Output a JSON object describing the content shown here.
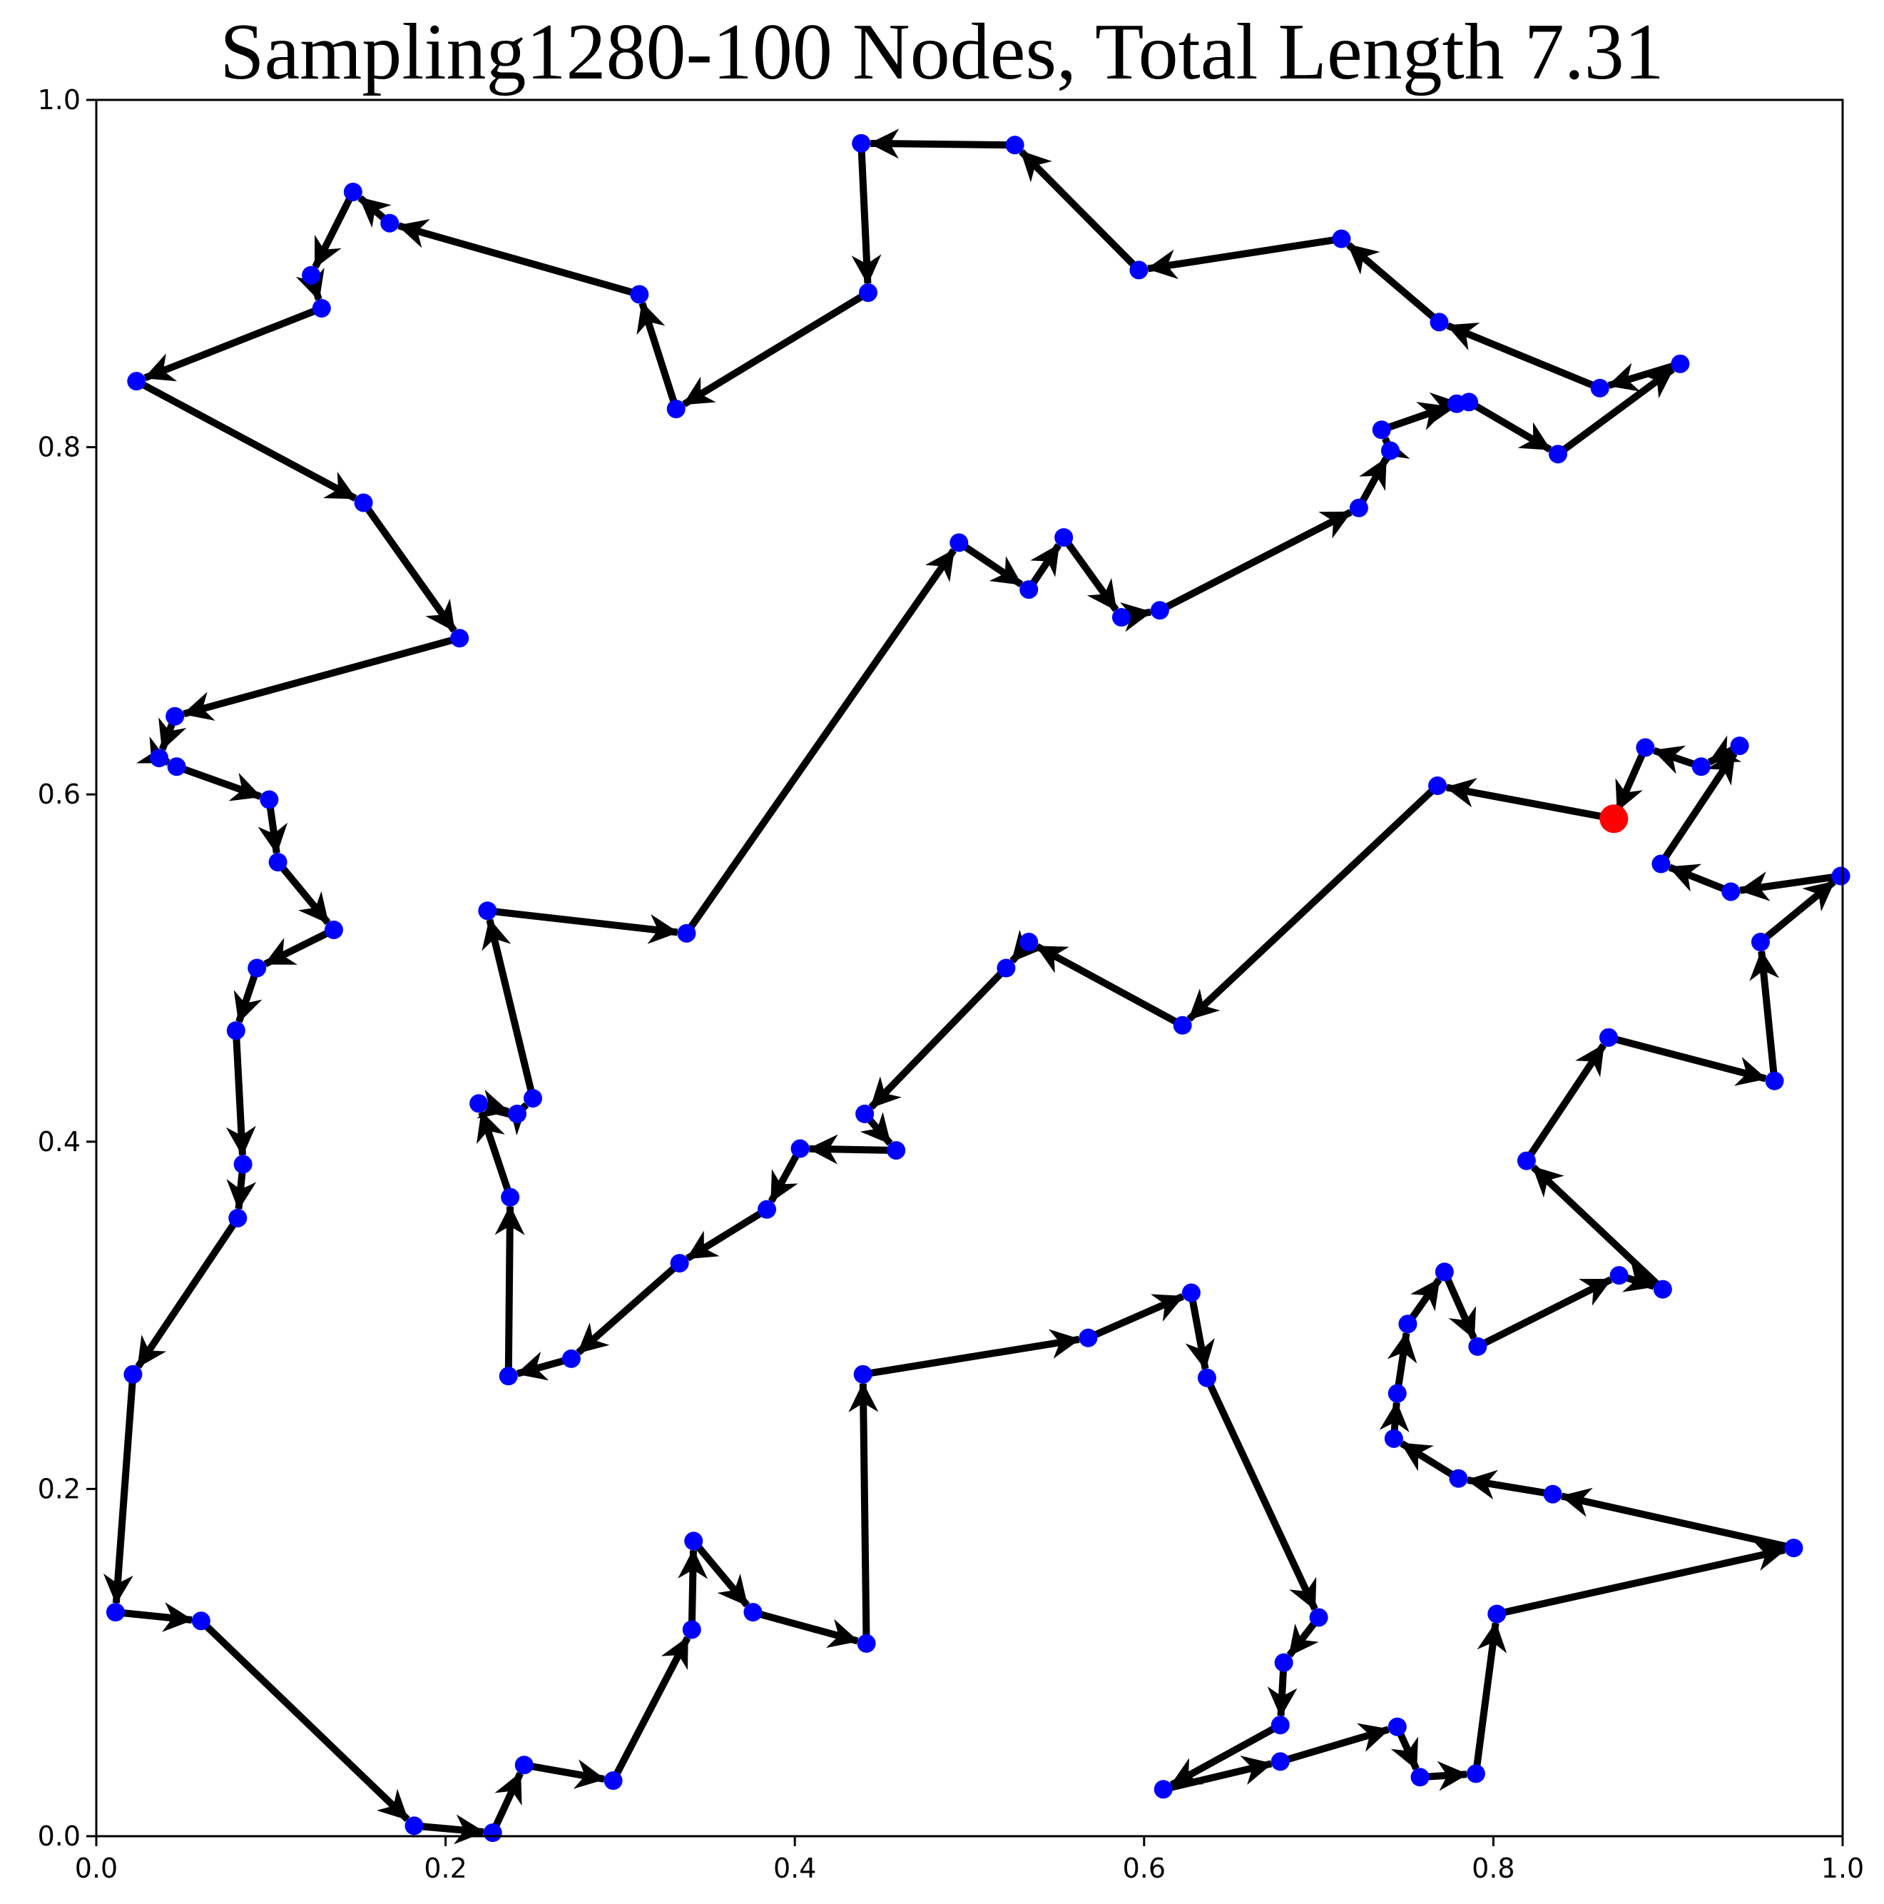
{
  "chart_data": {
    "type": "line",
    "title": "Sampling1280-100 Nodes, Total Length 7.31",
    "xlim": [
      0.0,
      1.0
    ],
    "ylim": [
      0.0,
      1.0
    ],
    "xticks": [
      "0.0",
      "0.2",
      "0.4",
      "0.6",
      "0.8",
      "1.0"
    ],
    "yticks": [
      "0.0",
      "0.2",
      "0.4",
      "0.6",
      "0.8",
      "1.0"
    ],
    "grid": false,
    "colors": {
      "node": "#0000ff",
      "start": "#ff0000",
      "edge": "#000000"
    },
    "start_node": [
      0.869,
      0.586
    ],
    "tour": [
      [
        0.869,
        0.586
      ],
      [
        0.768,
        0.605
      ],
      [
        0.622,
        0.467
      ],
      [
        0.534,
        0.515
      ],
      [
        0.521,
        0.5
      ],
      [
        0.44,
        0.416
      ],
      [
        0.458,
        0.395
      ],
      [
        0.403,
        0.396
      ],
      [
        0.384,
        0.361
      ],
      [
        0.334,
        0.33
      ],
      [
        0.272,
        0.275
      ],
      [
        0.236,
        0.265
      ],
      [
        0.237,
        0.368
      ],
      [
        0.219,
        0.422
      ],
      [
        0.241,
        0.416
      ],
      [
        0.25,
        0.425
      ],
      [
        0.224,
        0.533
      ],
      [
        0.338,
        0.52
      ],
      [
        0.494,
        0.745
      ],
      [
        0.534,
        0.718
      ],
      [
        0.554,
        0.748
      ],
      [
        0.587,
        0.702
      ],
      [
        0.609,
        0.706
      ],
      [
        0.723,
        0.765
      ],
      [
        0.741,
        0.798
      ],
      [
        0.736,
        0.81
      ],
      [
        0.779,
        0.825
      ],
      [
        0.786,
        0.826
      ],
      [
        0.837,
        0.796
      ],
      [
        0.907,
        0.848
      ],
      [
        0.861,
        0.834
      ],
      [
        0.769,
        0.872
      ],
      [
        0.713,
        0.92
      ],
      [
        0.597,
        0.902
      ],
      [
        0.526,
        0.974
      ],
      [
        0.438,
        0.975
      ],
      [
        0.442,
        0.889
      ],
      [
        0.332,
        0.822
      ],
      [
        0.311,
        0.888
      ],
      [
        0.168,
        0.929
      ],
      [
        0.147,
        0.947
      ],
      [
        0.123,
        0.899
      ],
      [
        0.129,
        0.88
      ],
      [
        0.023,
        0.838
      ],
      [
        0.153,
        0.768
      ],
      [
        0.208,
        0.69
      ],
      [
        0.045,
        0.645
      ],
      [
        0.036,
        0.621
      ],
      [
        0.046,
        0.616
      ],
      [
        0.099,
        0.597
      ],
      [
        0.104,
        0.561
      ],
      [
        0.136,
        0.522
      ],
      [
        0.092,
        0.5
      ],
      [
        0.08,
        0.464
      ],
      [
        0.084,
        0.387
      ],
      [
        0.081,
        0.356
      ],
      [
        0.021,
        0.266
      ],
      [
        0.011,
        0.129
      ],
      [
        0.06,
        0.124
      ],
      [
        0.182,
        0.006
      ],
      [
        0.227,
        0.002
      ],
      [
        0.245,
        0.041
      ],
      [
        0.296,
        0.032
      ],
      [
        0.341,
        0.119
      ],
      [
        0.342,
        0.17
      ],
      [
        0.376,
        0.129
      ],
      [
        0.441,
        0.111
      ],
      [
        0.439,
        0.266
      ],
      [
        0.568,
        0.287
      ],
      [
        0.627,
        0.313
      ],
      [
        0.636,
        0.264
      ],
      [
        0.7,
        0.126
      ],
      [
        0.68,
        0.1
      ],
      [
        0.678,
        0.064
      ],
      [
        0.611,
        0.027
      ],
      [
        0.678,
        0.043
      ],
      [
        0.745,
        0.063
      ],
      [
        0.758,
        0.034
      ],
      [
        0.79,
        0.036
      ],
      [
        0.802,
        0.128
      ],
      [
        0.972,
        0.166
      ],
      [
        0.834,
        0.197
      ],
      [
        0.78,
        0.206
      ],
      [
        0.743,
        0.229
      ],
      [
        0.745,
        0.255
      ],
      [
        0.751,
        0.295
      ],
      [
        0.772,
        0.325
      ],
      [
        0.791,
        0.282
      ],
      [
        0.872,
        0.323
      ],
      [
        0.897,
        0.315
      ],
      [
        0.819,
        0.389
      ],
      [
        0.866,
        0.46
      ],
      [
        0.961,
        0.435
      ],
      [
        0.953,
        0.515
      ],
      [
        0.999,
        0.553
      ],
      [
        0.936,
        0.544
      ],
      [
        0.896,
        0.56
      ],
      [
        0.941,
        0.628
      ],
      [
        0.919,
        0.616
      ],
      [
        0.887,
        0.627
      ],
      [
        0.869,
        0.586
      ]
    ]
  }
}
